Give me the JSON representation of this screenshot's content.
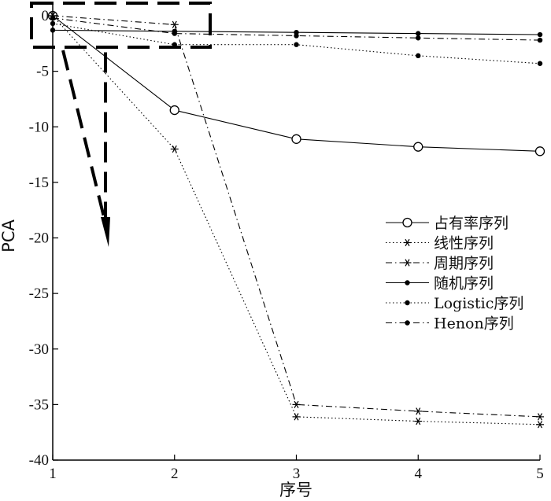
{
  "chart_data": {
    "type": "line",
    "title": "",
    "xlabel": "序号",
    "ylabel": "PCA",
    "x": [
      1,
      2,
      3,
      4,
      5
    ],
    "xlim": [
      1,
      5
    ],
    "ylim": [
      -40,
      0
    ],
    "xticks": [
      "1",
      "2",
      "3",
      "4",
      "5"
    ],
    "yticks": [
      "0",
      "-5",
      "-10",
      "-15",
      "-20",
      "-25",
      "-30",
      "-35",
      "-40"
    ],
    "grid": false,
    "legend_position": "center-right",
    "series": [
      {
        "name": "占有率序列",
        "values": [
          0,
          -8.5,
          -11.1,
          -11.8,
          -12.2
        ],
        "line": "solid",
        "marker": "circle"
      },
      {
        "name": "线性序列",
        "values": [
          0,
          -12,
          -36.1,
          -36.5,
          -36.8
        ],
        "line": "dotted",
        "marker": "star"
      },
      {
        "name": "周期序列",
        "values": [
          0,
          -0.8,
          -35,
          -35.6,
          -36.1
        ],
        "line": "dashdot",
        "marker": "star"
      },
      {
        "name": "随机序列",
        "values": [
          -1.3,
          -1.4,
          -1.5,
          -1.6,
          -1.7
        ],
        "line": "solid",
        "marker": "dot"
      },
      {
        "name": "Logistic序列",
        "values": [
          -0.7,
          -2.6,
          -2.6,
          -3.6,
          -4.3
        ],
        "line": "dotted",
        "marker": "dot"
      },
      {
        "name": "Henon序列",
        "values": [
          -0.2,
          -1.6,
          -1.8,
          -2.0,
          -2.2
        ],
        "line": "dashdot",
        "marker": "dot"
      }
    ]
  }
}
